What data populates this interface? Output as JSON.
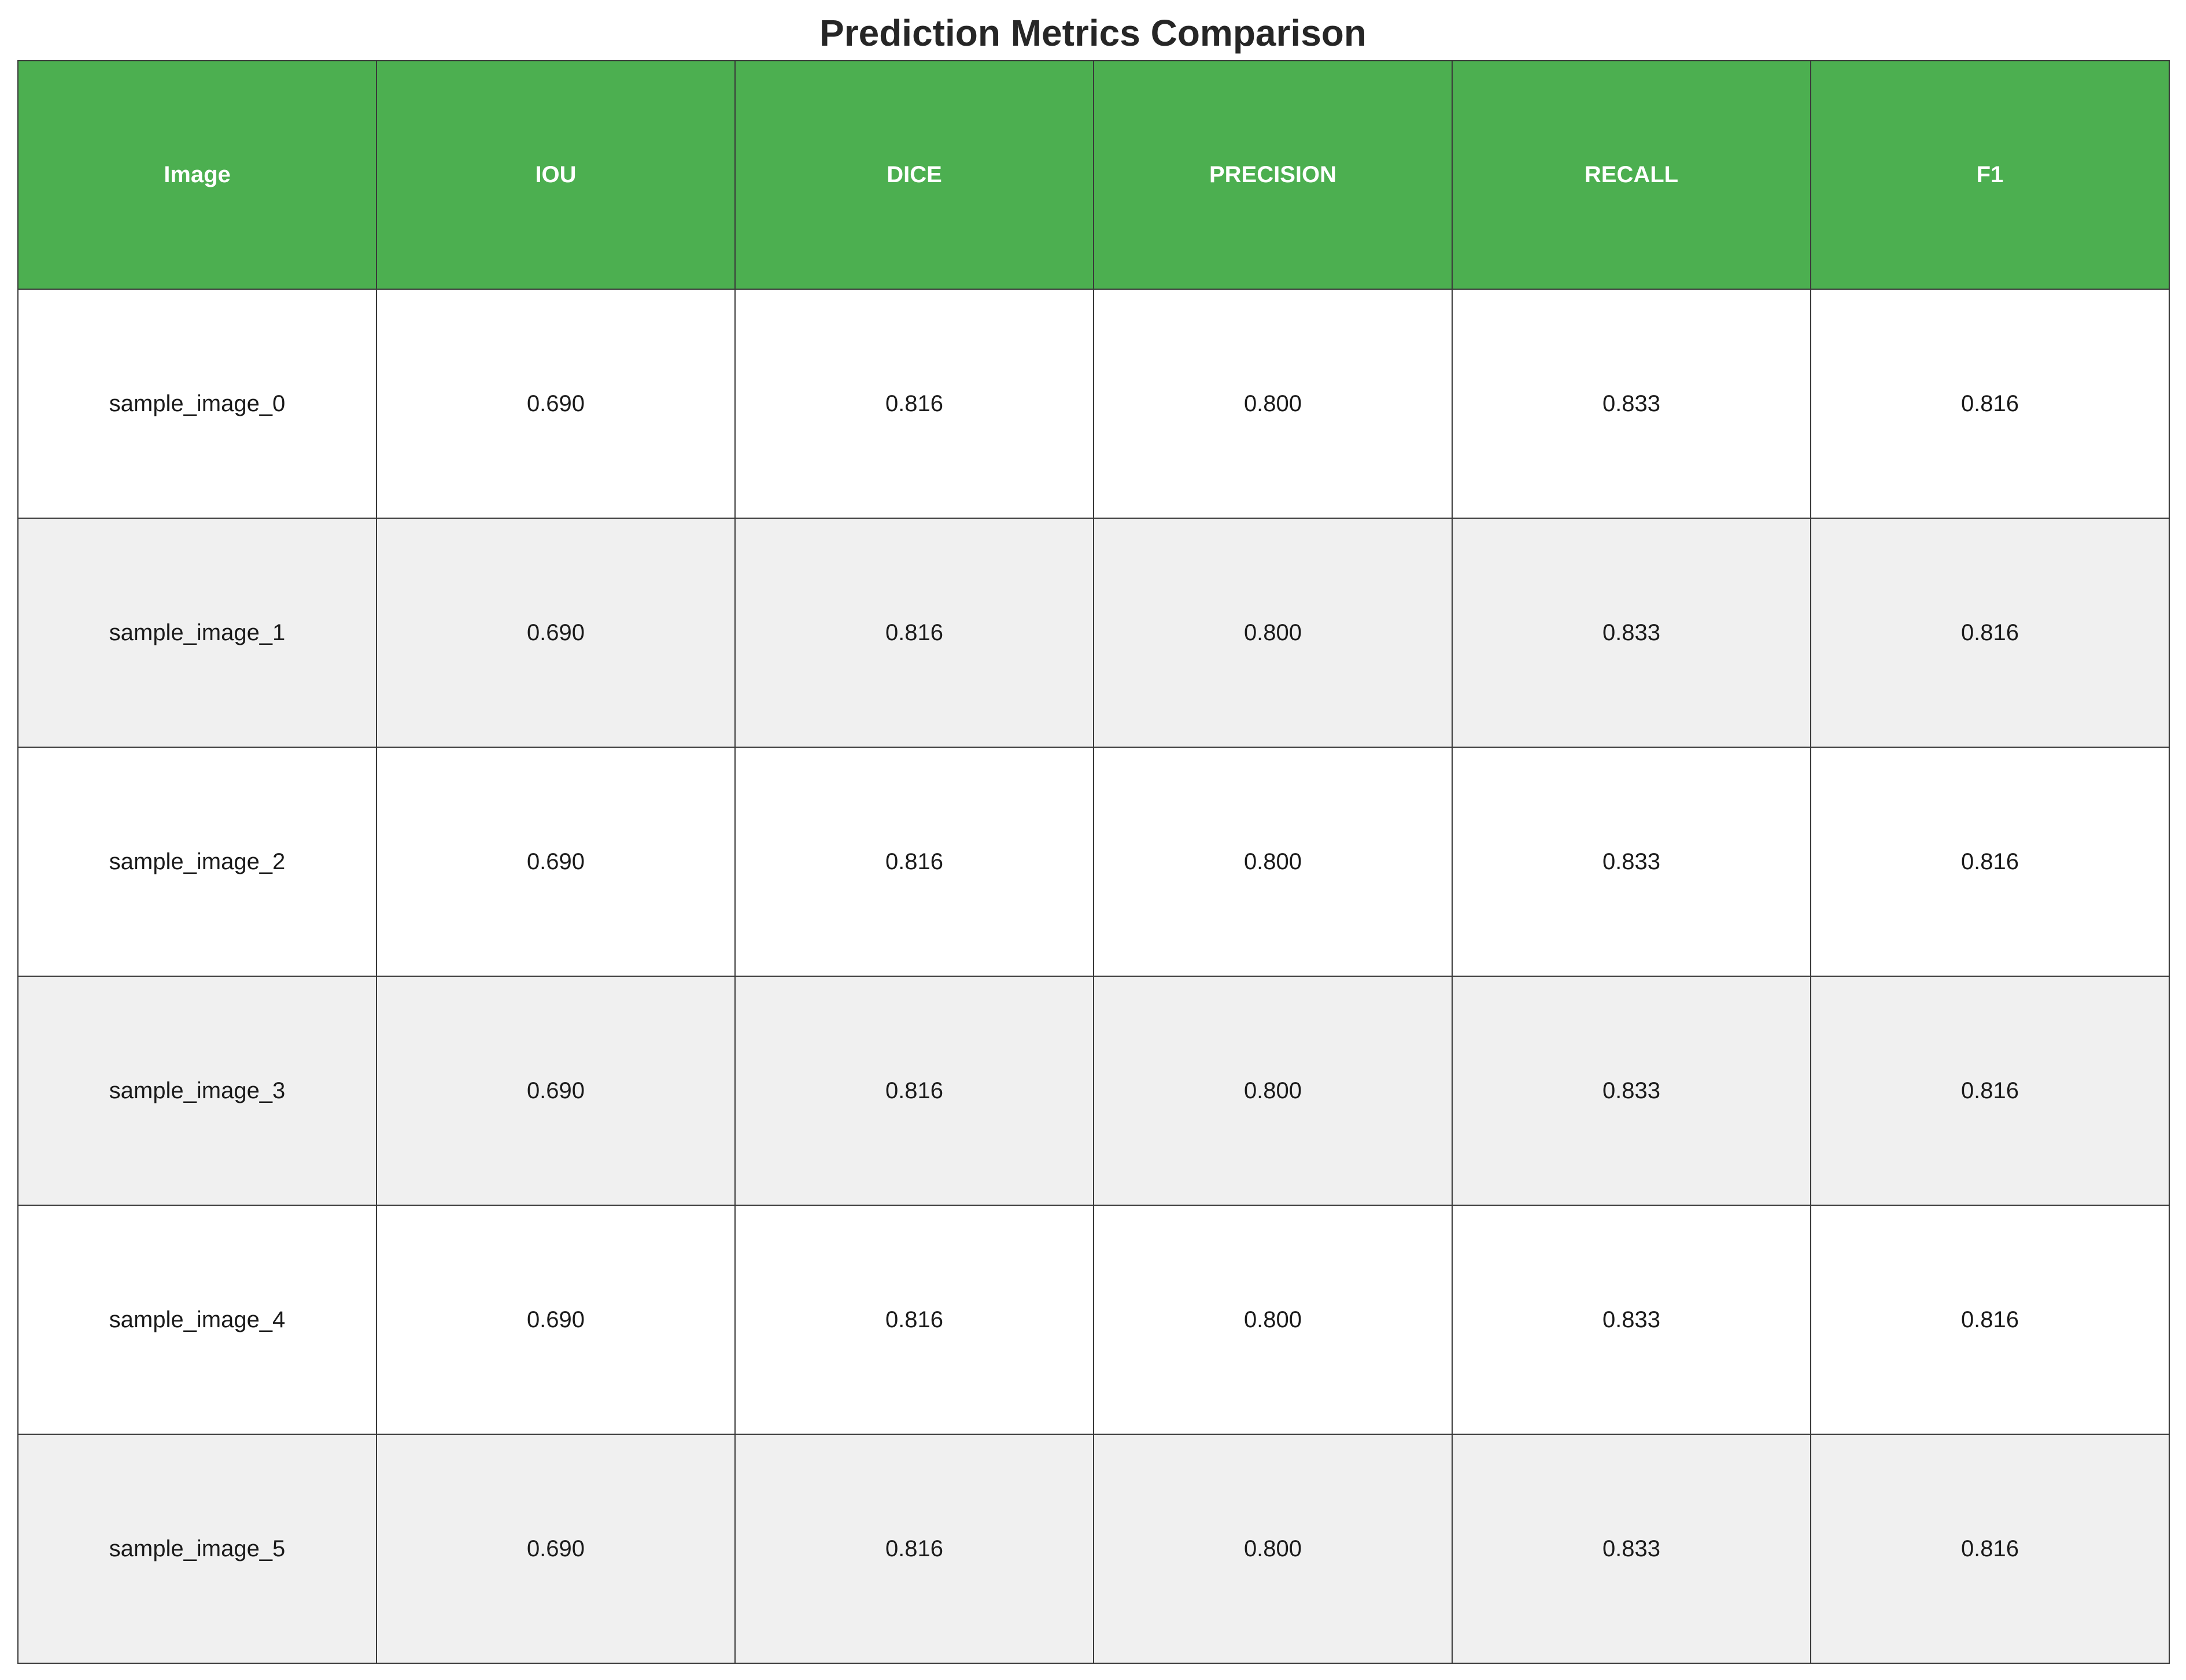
{
  "chart_data": {
    "type": "table",
    "title": "Prediction Metrics Comparison",
    "columns": [
      "Image",
      "IOU",
      "DICE",
      "PRECISION",
      "RECALL",
      "F1"
    ],
    "rows": [
      [
        "sample_image_0",
        "0.690",
        "0.816",
        "0.800",
        "0.833",
        "0.816"
      ],
      [
        "sample_image_1",
        "0.690",
        "0.816",
        "0.800",
        "0.833",
        "0.816"
      ],
      [
        "sample_image_2",
        "0.690",
        "0.816",
        "0.800",
        "0.833",
        "0.816"
      ],
      [
        "sample_image_3",
        "0.690",
        "0.816",
        "0.800",
        "0.833",
        "0.816"
      ],
      [
        "sample_image_4",
        "0.690",
        "0.816",
        "0.800",
        "0.833",
        "0.816"
      ],
      [
        "sample_image_5",
        "0.690",
        "0.816",
        "0.800",
        "0.833",
        "0.816"
      ]
    ],
    "colors": {
      "header_background": "#4caf50",
      "header_text": "#ffffff",
      "row_background": "#ffffff",
      "alternate_row_background": "#f0f0f0",
      "border": "#3a3a3a"
    }
  }
}
